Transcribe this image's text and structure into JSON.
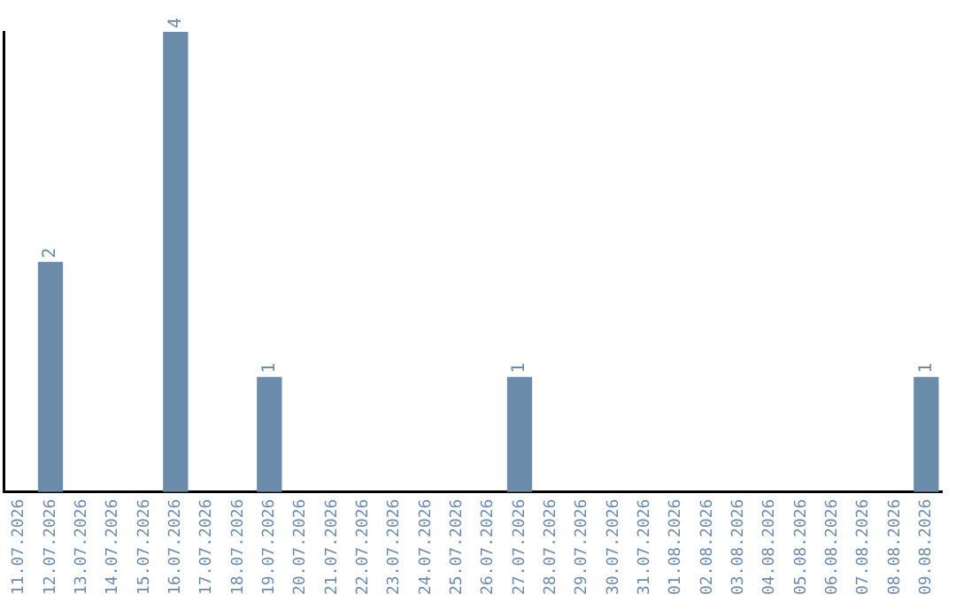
{
  "chart_data": {
    "type": "bar",
    "categories": [
      "11.07.2026",
      "12.07.2026",
      "13.07.2026",
      "14.07.2026",
      "15.07.2026",
      "16.07.2026",
      "17.07.2026",
      "18.07.2026",
      "19.07.2026",
      "20.07.2026",
      "21.07.2026",
      "22.07.2026",
      "23.07.2026",
      "24.07.2026",
      "25.07.2026",
      "26.07.2026",
      "27.07.2026",
      "28.07.2026",
      "29.07.2026",
      "30.07.2026",
      "31.07.2026",
      "01.08.2026",
      "02.08.2026",
      "03.08.2026",
      "04.08.2026",
      "05.08.2026",
      "06.08.2026",
      "07.08.2026",
      "08.08.2026",
      "09.08.2026"
    ],
    "values": [
      0,
      2,
      0,
      0,
      0,
      4,
      0,
      0,
      1,
      0,
      0,
      0,
      0,
      0,
      0,
      0,
      1,
      0,
      0,
      0,
      0,
      0,
      0,
      0,
      0,
      0,
      0,
      0,
      0,
      1
    ],
    "value_labels": [
      null,
      "2",
      null,
      null,
      null,
      "4",
      null,
      null,
      "1",
      null,
      null,
      null,
      null,
      null,
      null,
      null,
      "1",
      null,
      null,
      null,
      null,
      null,
      null,
      null,
      null,
      null,
      null,
      null,
      null,
      "1"
    ],
    "color": "#6a8caa",
    "tick_labels": "x",
    "grid": false,
    "legend": false
  }
}
